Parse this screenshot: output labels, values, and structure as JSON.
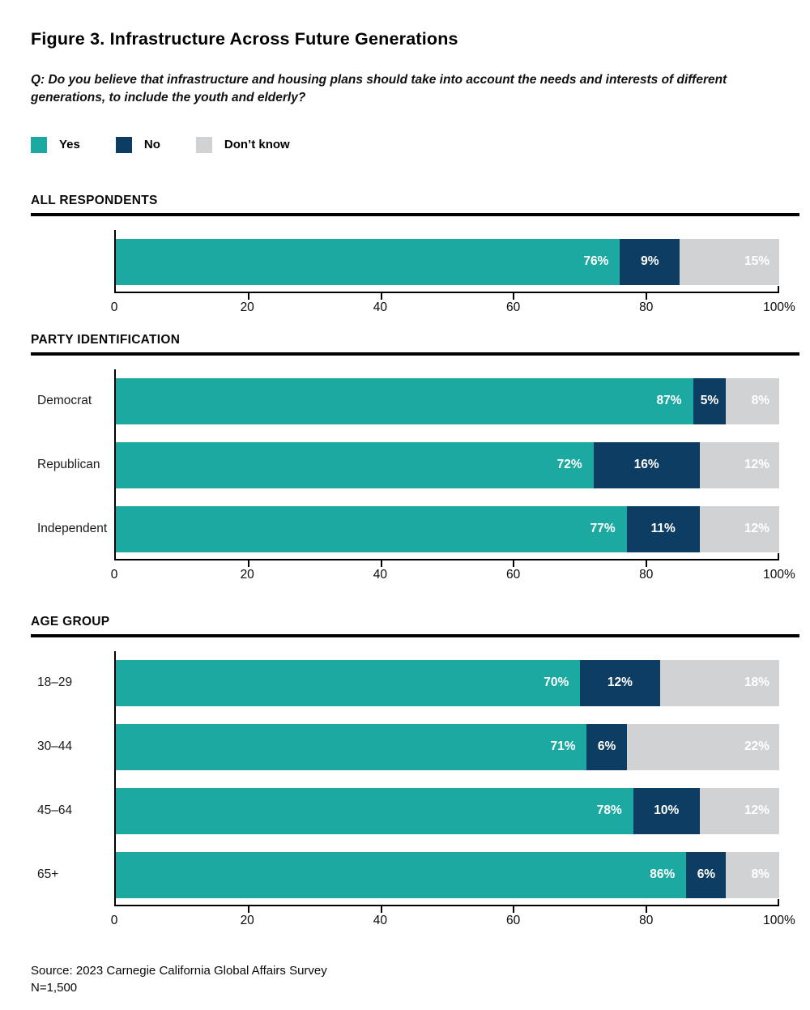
{
  "figure": {
    "title": "Figure 3. Infrastructure Across Future Generations",
    "question": "Q: Do you believe that infrastructure and housing plans should take into account the needs and interests of different generations, to include the youth and elderly?",
    "source": "Source: 2023 Carnegie California Global Affairs Survey",
    "sample_size": "N=1,500"
  },
  "colors": {
    "yes": "#1CA9A1",
    "no": "#0D3D62",
    "dont_know": "#D1D2D4",
    "axis": "#000000",
    "rule": "#000000"
  },
  "legend": {
    "items": [
      {
        "key": "yes",
        "label": "Yes"
      },
      {
        "key": "no",
        "label": "No"
      },
      {
        "key": "dont_know",
        "label": "Don’t know"
      }
    ]
  },
  "chart_data": [
    {
      "type": "bar",
      "orientation": "horizontal",
      "stacked": true,
      "section": "ALL RESPONDENTS",
      "xlim": [
        0,
        100
      ],
      "x_ticks": [
        "0",
        "20",
        "40",
        "60",
        "80",
        "100%"
      ],
      "categories": [
        ""
      ],
      "series": [
        {
          "name": "Yes",
          "values": [
            76
          ]
        },
        {
          "name": "No",
          "values": [
            9
          ]
        },
        {
          "name": "Don’t know",
          "values": [
            15
          ]
        }
      ]
    },
    {
      "type": "bar",
      "orientation": "horizontal",
      "stacked": true,
      "section": "PARTY IDENTIFICATION",
      "xlim": [
        0,
        100
      ],
      "x_ticks": [
        "0",
        "20",
        "40",
        "60",
        "80",
        "100%"
      ],
      "categories": [
        "Democrat",
        "Republican",
        "Independent"
      ],
      "series": [
        {
          "name": "Yes",
          "values": [
            87,
            72,
            77
          ]
        },
        {
          "name": "No",
          "values": [
            5,
            16,
            11
          ]
        },
        {
          "name": "Don’t know",
          "values": [
            8,
            12,
            12
          ]
        }
      ]
    },
    {
      "type": "bar",
      "orientation": "horizontal",
      "stacked": true,
      "section": "AGE GROUP",
      "xlim": [
        0,
        100
      ],
      "x_ticks": [
        "0",
        "20",
        "40",
        "60",
        "80",
        "100%"
      ],
      "categories": [
        "18–29",
        "30–44",
        "45–64",
        "65+"
      ],
      "series": [
        {
          "name": "Yes",
          "values": [
            70,
            71,
            78,
            86
          ]
        },
        {
          "name": "No",
          "values": [
            12,
            6,
            10,
            6
          ]
        },
        {
          "name": "Don’t know",
          "values": [
            18,
            22,
            12,
            8
          ]
        }
      ]
    }
  ]
}
